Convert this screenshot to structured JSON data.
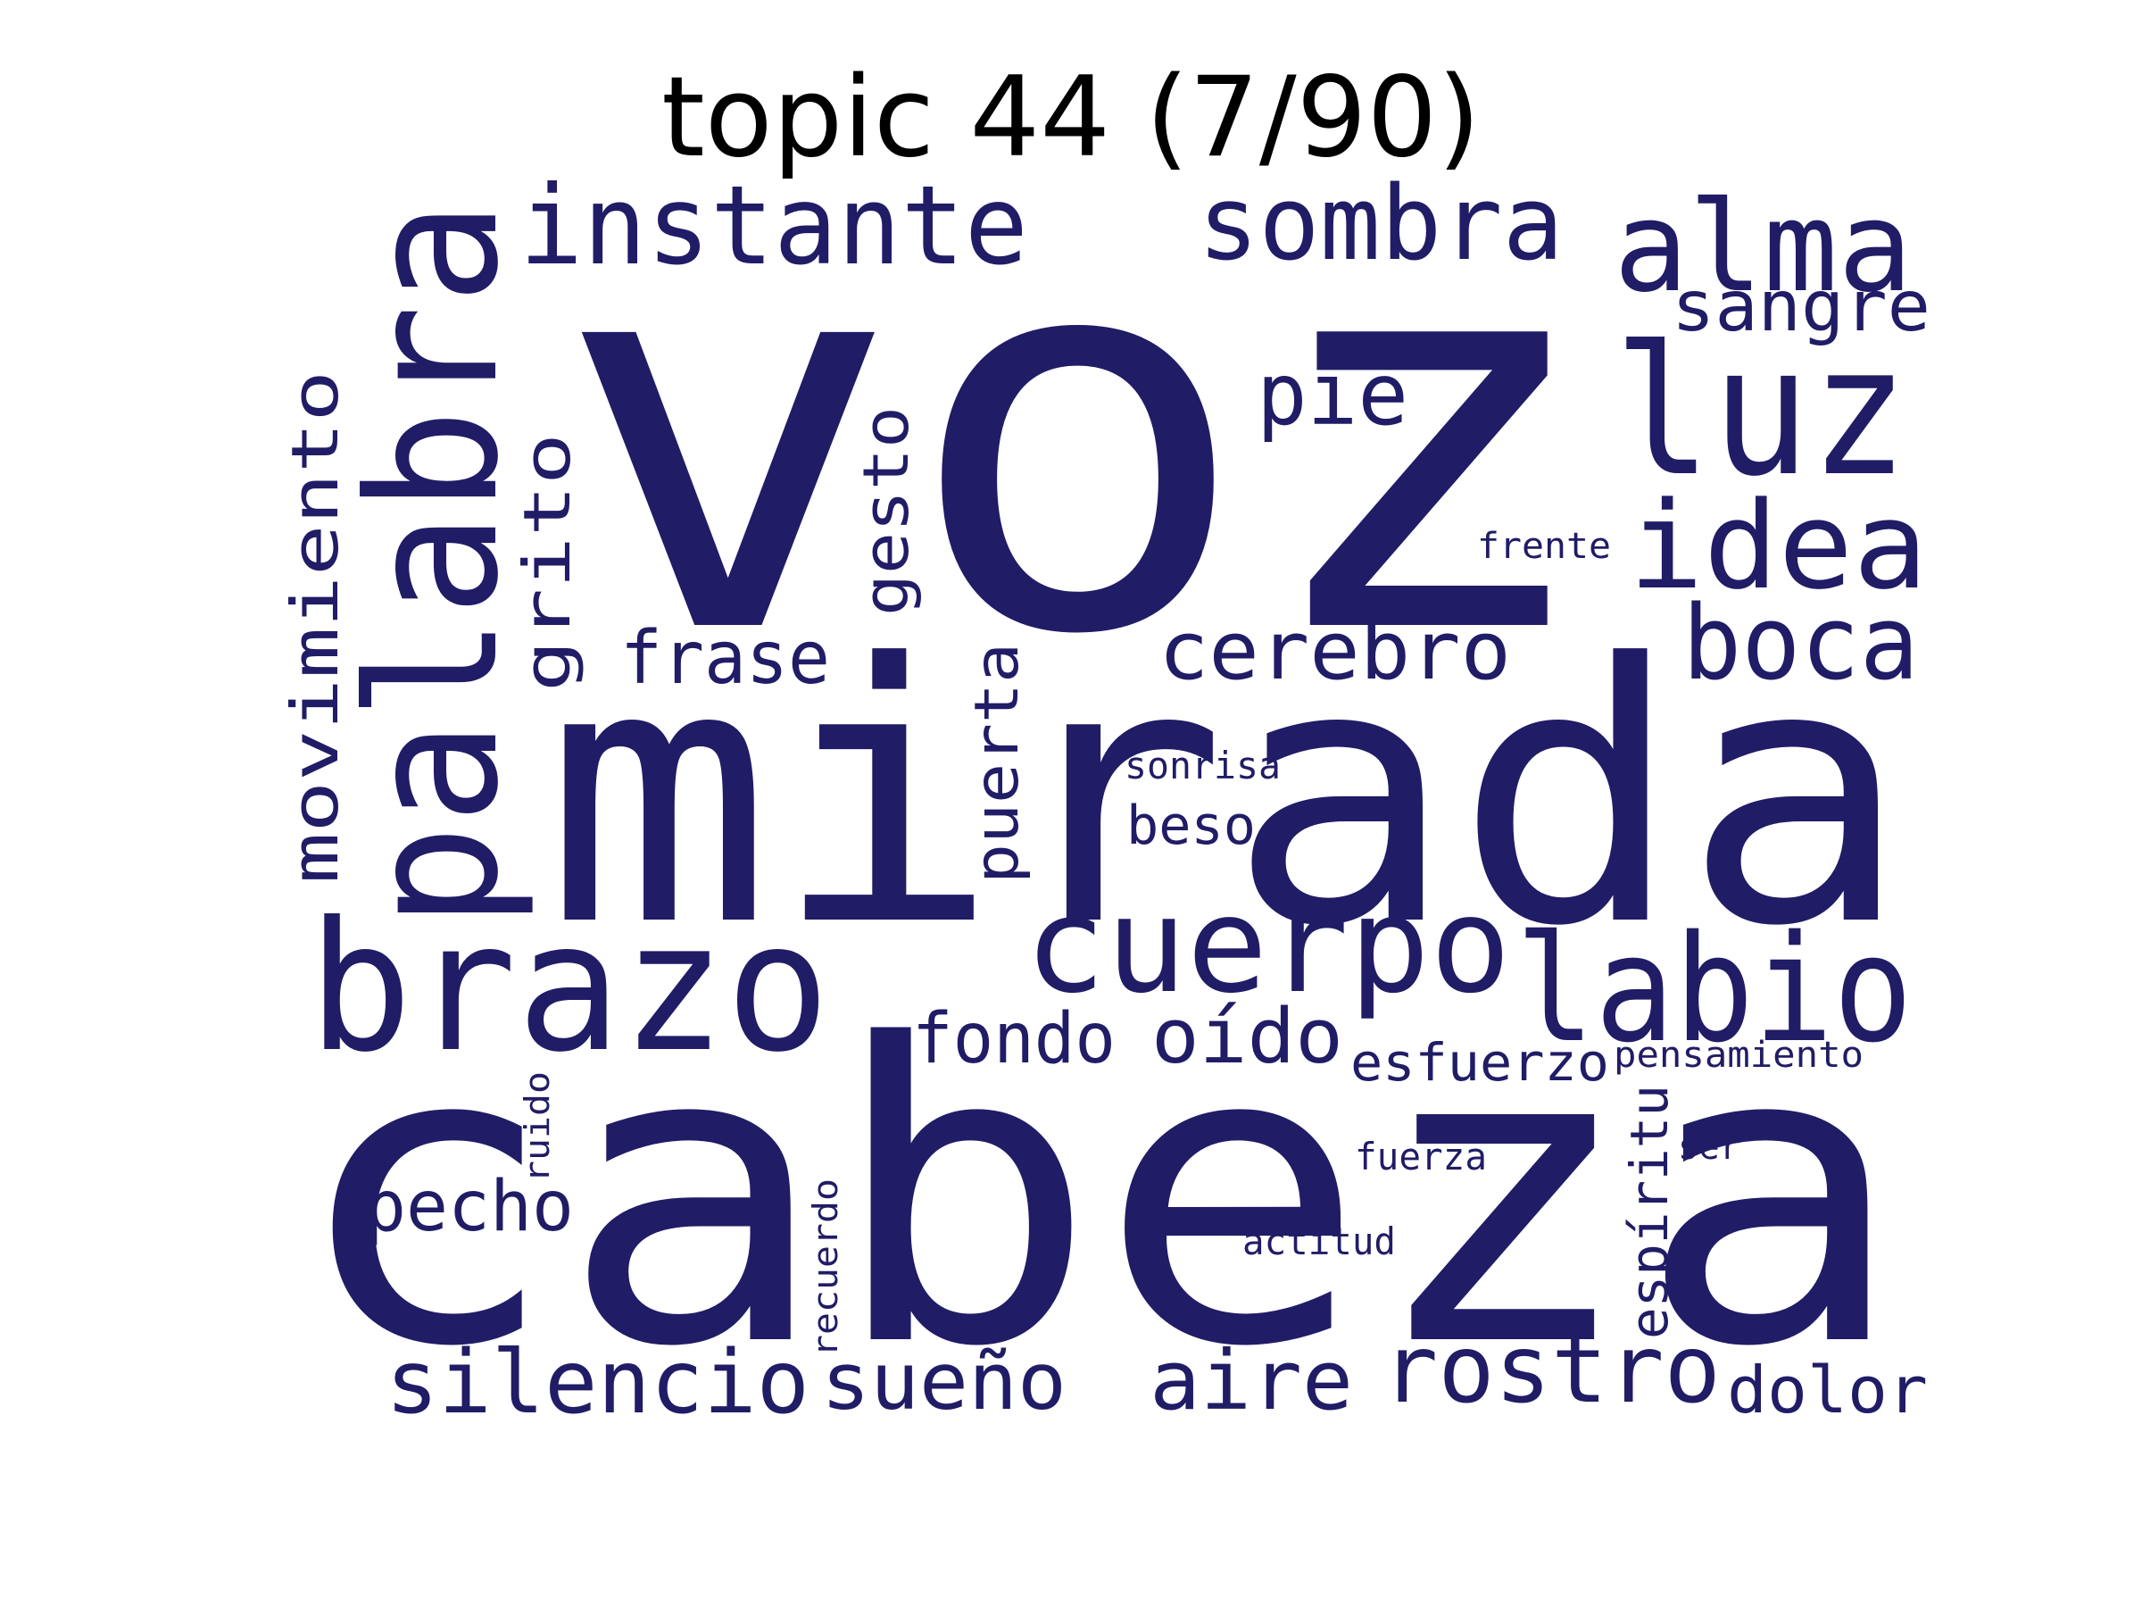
{
  "title": "topic 44 (7/90)",
  "colors": {
    "word": "#211c66",
    "background": "#ffffff",
    "title": "#000000"
  },
  "words": {
    "voz": "voz",
    "mirada": "mirada",
    "cabeza": "cabeza",
    "palabra": "palabra",
    "instante": "instante",
    "sombra": "sombra",
    "alma": "alma",
    "sangre": "sangre",
    "luz": "luz",
    "pie": "pie",
    "idea": "idea",
    "frente": "frente",
    "movimiento": "movimiento",
    "grito": "grito",
    "gesto": "gesto",
    "frase": "frase",
    "cerebro": "cerebro",
    "boca": "boca",
    "puerta": "puerta",
    "sonrisa": "sonrisa",
    "beso": "beso",
    "brazo": "brazo",
    "cuerpo": "cuerpo",
    "labio": "labio",
    "fondo": "fondo",
    "oido": "oído",
    "esfuerzo": "esfuerzo",
    "pensamiento": "pensamiento",
    "ruido": "ruido",
    "pecho": "pecho",
    "fuerza": "fuerza",
    "ser": "ser",
    "espiritu": "espíritu",
    "recuerdo": "recuerdo",
    "actitud": "actitud",
    "silencio": "silencio",
    "sueno": "sueño",
    "aire": "aire",
    "rostro": "rostro",
    "dolor": "dolor"
  }
}
